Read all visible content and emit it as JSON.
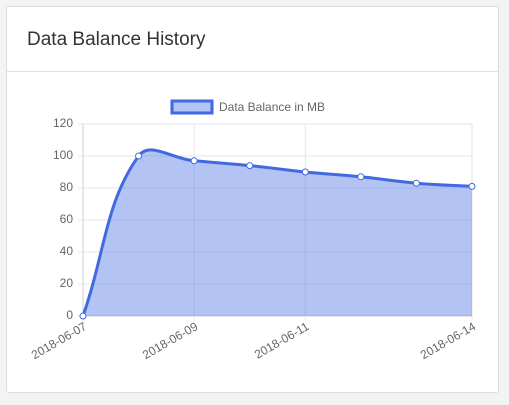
{
  "chart_data": {
    "type": "line",
    "title": "Data Balance History",
    "x": [
      "2018-06-07",
      "2018-06-08",
      "2018-06-09",
      "2018-06-10",
      "2018-06-11",
      "2018-06-12",
      "2018-06-13",
      "2018-06-14"
    ],
    "series": [
      {
        "name": "Data Balance in MB",
        "color": "#4169e1",
        "values": [
          0,
          100,
          97,
          94,
          90,
          87,
          83,
          81
        ]
      }
    ],
    "xlim": [
      "2018-06-07",
      "2018-06-14"
    ],
    "xticks": [
      "2018-06-07",
      "2018-06-09",
      "2018-06-11",
      "2018-06-14"
    ],
    "ylim": [
      0,
      120
    ],
    "yticks": [
      0,
      20,
      40,
      60,
      80,
      100,
      120
    ],
    "grid": true,
    "fill": true,
    "legend": "top"
  }
}
